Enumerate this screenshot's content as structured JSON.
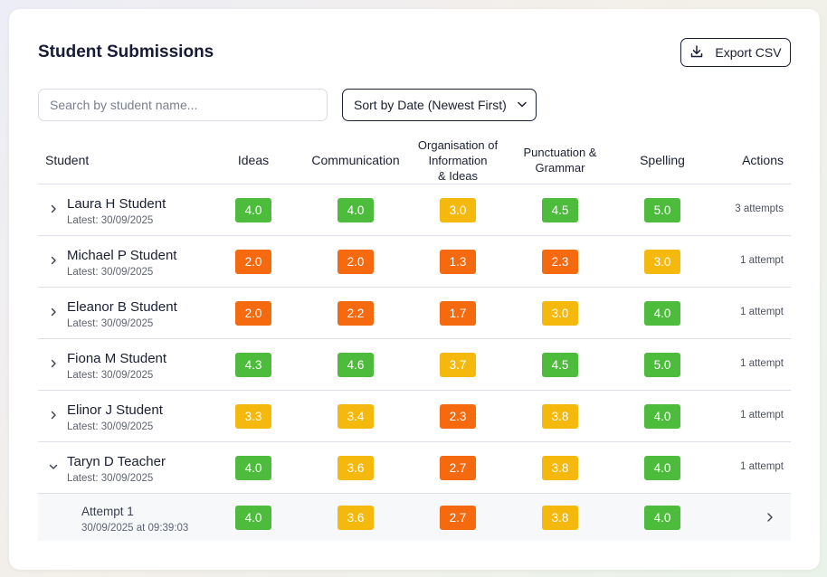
{
  "header": {
    "title": "Student Submissions",
    "export_label": "Export CSV"
  },
  "controls": {
    "search_placeholder": "Search by student name...",
    "sort_label": "Sort by Date (Newest First)"
  },
  "table": {
    "columns": {
      "student": "Student",
      "ideas": "Ideas",
      "communication": "Communication",
      "organisation_line1": "Organisation of",
      "organisation_line2": "Information",
      "organisation_line3": "& Ideas",
      "punctuation_line1": "Punctuation &",
      "punctuation_line2": "Grammar",
      "spelling": "Spelling",
      "actions": "Actions"
    },
    "rows": [
      {
        "name": "Laura H Student",
        "date": "Latest: 30/09/2025",
        "scores": [
          "4.0",
          "4.0",
          "3.0",
          "4.5",
          "5.0"
        ],
        "colors": [
          "green",
          "green",
          "yellow",
          "green",
          "green"
        ],
        "attempts": "3 attempts"
      },
      {
        "name": "Michael P Student",
        "date": "Latest: 30/09/2025",
        "scores": [
          "2.0",
          "2.0",
          "1.3",
          "2.3",
          "3.0"
        ],
        "colors": [
          "orange",
          "orange",
          "orange",
          "orange",
          "yellow"
        ],
        "attempts": "1 attempt"
      },
      {
        "name": "Eleanor B Student",
        "date": "Latest: 30/09/2025",
        "scores": [
          "2.0",
          "2.2",
          "1.7",
          "3.0",
          "4.0"
        ],
        "colors": [
          "orange",
          "orange",
          "orange",
          "yellow",
          "green"
        ],
        "attempts": "1 attempt"
      },
      {
        "name": "Fiona M Student",
        "date": "Latest: 30/09/2025",
        "scores": [
          "4.3",
          "4.6",
          "3.7",
          "4.5",
          "5.0"
        ],
        "colors": [
          "green",
          "green",
          "yellow",
          "green",
          "green"
        ],
        "attempts": "1 attempt"
      },
      {
        "name": "Elinor J Student",
        "date": "Latest: 30/09/2025",
        "scores": [
          "3.3",
          "3.4",
          "2.3",
          "3.8",
          "4.0"
        ],
        "colors": [
          "yellow",
          "yellow",
          "orange",
          "yellow",
          "green"
        ],
        "attempts": "1 attempt"
      },
      {
        "name": "Taryn D Teacher",
        "date": "Latest: 30/09/2025",
        "scores": [
          "4.0",
          "3.6",
          "2.7",
          "3.8",
          "4.0"
        ],
        "colors": [
          "green",
          "yellow",
          "orange",
          "yellow",
          "green"
        ],
        "attempts": "1 attempt"
      }
    ],
    "expanded_attempt": {
      "label": "Attempt 1",
      "date": "30/09/2025 at 09:39:03",
      "scores": [
        "4.0",
        "3.6",
        "2.7",
        "3.8",
        "4.0"
      ],
      "colors": [
        "green",
        "yellow",
        "orange",
        "yellow",
        "green"
      ]
    }
  },
  "colors": {
    "green": "#4dbb3c",
    "yellow": "#f5b80d",
    "orange": "#f5690f"
  }
}
